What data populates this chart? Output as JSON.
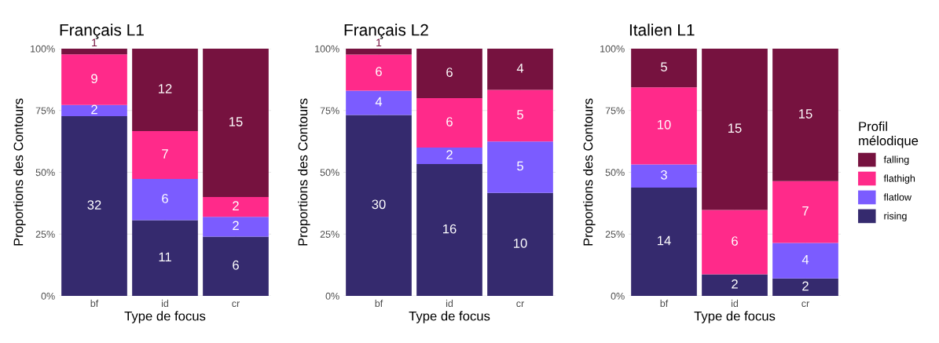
{
  "chart_data": [
    {
      "type": "bar",
      "stacked": true,
      "title": "Français L1",
      "xlabel": "Type de focus",
      "ylabel": "Proportions des Contours",
      "categories": [
        "bf",
        "id",
        "cr"
      ],
      "ylim": [
        0,
        100
      ],
      "yticks": [
        {
          "value": 0,
          "label": "0%"
        },
        {
          "value": 25,
          "label": "25%"
        },
        {
          "value": 50,
          "label": "50%"
        },
        {
          "value": 75,
          "label": "75%"
        },
        {
          "value": 100,
          "label": "100%"
        }
      ],
      "grid": true,
      "series": [
        {
          "color": "#352a6e",
          "values": [
            72.7,
            30.6,
            24.0
          ]
        },
        {
          "color": "#7b5cff",
          "values": [
            4.5,
            16.7,
            8.0
          ]
        },
        {
          "color": "#ff2a8a",
          "values": [
            20.5,
            19.4,
            8.0
          ]
        },
        {
          "color": "#76123f",
          "values": [
            2.3,
            33.3,
            60.0
          ]
        }
      ],
      "annotations": [
        "32",
        "11",
        "6",
        "2",
        "6",
        "2",
        "9",
        "7",
        "2",
        "1",
        "12",
        "15"
      ]
    },
    {
      "type": "bar",
      "stacked": true,
      "title": "Français L2",
      "xlabel": "Type de focus",
      "ylabel": "Proportions des Contours",
      "categories": [
        "bf",
        "id",
        "cr"
      ],
      "ylim": [
        0,
        100
      ],
      "yticks": [
        {
          "value": 0,
          "label": "0%"
        },
        {
          "value": 25,
          "label": "25%"
        },
        {
          "value": 50,
          "label": "50%"
        },
        {
          "value": 75,
          "label": "75%"
        },
        {
          "value": 100,
          "label": "100%"
        }
      ],
      "grid": true,
      "series": [
        {
          "color": "#352a6e",
          "values": [
            73.2,
            53.3,
            41.7
          ]
        },
        {
          "color": "#7b5cff",
          "values": [
            9.8,
            6.7,
            20.8
          ]
        },
        {
          "color": "#ff2a8a",
          "values": [
            14.6,
            20.0,
            20.8
          ]
        },
        {
          "color": "#76123f",
          "values": [
            2.4,
            20.0,
            16.7
          ]
        }
      ],
      "annotations": [
        "30",
        "16",
        "10",
        "4",
        "2",
        "5",
        "6",
        "6",
        "5",
        "1",
        "6",
        "4"
      ]
    },
    {
      "type": "bar",
      "stacked": true,
      "title": "Italien L1",
      "xlabel": "Type de focus",
      "ylabel": "Proportions des Contours",
      "categories": [
        "bf",
        "id",
        "cr"
      ],
      "ylim": [
        0,
        100
      ],
      "yticks": [
        {
          "value": 0,
          "label": "0%"
        },
        {
          "value": 25,
          "label": "25%"
        },
        {
          "value": 50,
          "label": "50%"
        },
        {
          "value": 75,
          "label": "75%"
        },
        {
          "value": 100,
          "label": "100%"
        }
      ],
      "grid": true,
      "legend": "right",
      "legend_title": "Profil\nmélodique",
      "series": [
        {
          "name": "rising",
          "color": "#352a6e",
          "values": [
            43.8,
            8.7,
            7.1
          ]
        },
        {
          "name": "flatlow",
          "color": "#7b5cff",
          "values": [
            9.4,
            0,
            14.3
          ]
        },
        {
          "name": "flathigh",
          "color": "#ff2a8a",
          "values": [
            31.2,
            26.1,
            25.0
          ]
        },
        {
          "name": "falling",
          "color": "#76123f",
          "values": [
            15.6,
            65.2,
            53.6
          ]
        }
      ],
      "annotations": [
        "14",
        "2",
        "2",
        "3",
        "4",
        "10",
        "6",
        "7",
        "5",
        "15",
        "15"
      ]
    }
  ]
}
